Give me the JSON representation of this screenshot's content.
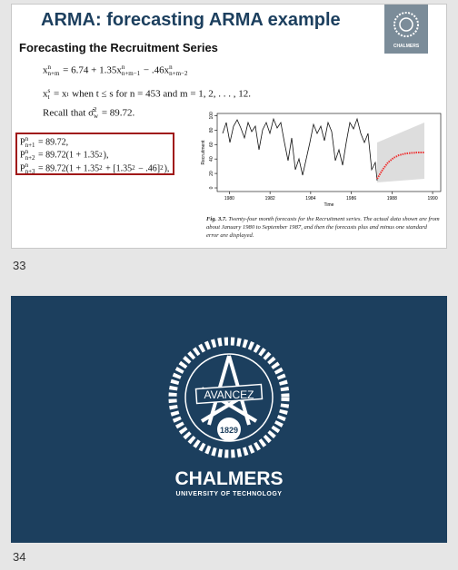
{
  "slides": [
    {
      "number": "33",
      "title": "ARMA: forecasting ARMA example",
      "subtitle": "Forecasting the Recruitment Series",
      "logo_text": "CHALMERS",
      "equations": [
        [
          {
            "text": "x"
          },
          {
            "sup": "n",
            "sub": "n+m"
          },
          {
            "text": " = 6.74 + 1.35x"
          },
          {
            "sup": "n",
            "sub": "n+m−1"
          },
          {
            "text": " − .46x"
          },
          {
            "sup": "n",
            "sub": "n+m−2"
          }
        ],
        [
          {
            "text": "x"
          },
          {
            "sup": "s",
            "sub": "t"
          },
          {
            "text": " = x"
          },
          {
            "sub": "t"
          },
          {
            "text": " when t ≤ s  for n = 453 and m = 1, 2, . . . , 12."
          }
        ],
        [
          {
            "text": "Recall that σ̂"
          },
          {
            "sup": "2",
            "sub": "w"
          },
          {
            "text": " = 89.72."
          }
        ]
      ],
      "box_lines": [
        [
          {
            "text": "P"
          },
          {
            "sup": "n",
            "sub": "n+1"
          },
          {
            "text": " = 89.72,"
          }
        ],
        [
          {
            "text": "P"
          },
          {
            "sup": "n",
            "sub": "n+2"
          },
          {
            "text": " = 89.72(1 + 1.35"
          },
          {
            "sup": "2"
          },
          {
            "text": "),"
          }
        ],
        [
          {
            "text": "P"
          },
          {
            "sup": "n",
            "sub": "n+3"
          },
          {
            "text": " = 89.72(1 + 1.35"
          },
          {
            "sup": "2"
          },
          {
            "text": " + [1.35"
          },
          {
            "sup": "2"
          },
          {
            "text": " − .46]"
          },
          {
            "sup": "2"
          },
          {
            "text": "),"
          }
        ]
      ],
      "plot": {
        "ylabel": "Recruitment",
        "xlabel": "Time",
        "xlim": [
          1979.4,
          1990.4
        ],
        "ylim": [
          -5,
          103
        ],
        "xticks": [
          1980,
          1982,
          1984,
          1986,
          1988,
          1990
        ],
        "yticks": [
          0,
          20,
          40,
          60,
          80,
          100
        ]
      },
      "caption_label": "Fig. 3.7.",
      "caption": "Twenty-four month forecasts for the Recruitment series. The actual data shown are from about January 1980 to September 1987, and then the forecasts plus and minus one standard error are displayed."
    },
    {
      "number": "34",
      "brand": "CHALMERS",
      "tagline": "UNIVERSITY OF TECHNOLOGY",
      "motto": "AVANCEZ",
      "year": "1829"
    }
  ]
}
